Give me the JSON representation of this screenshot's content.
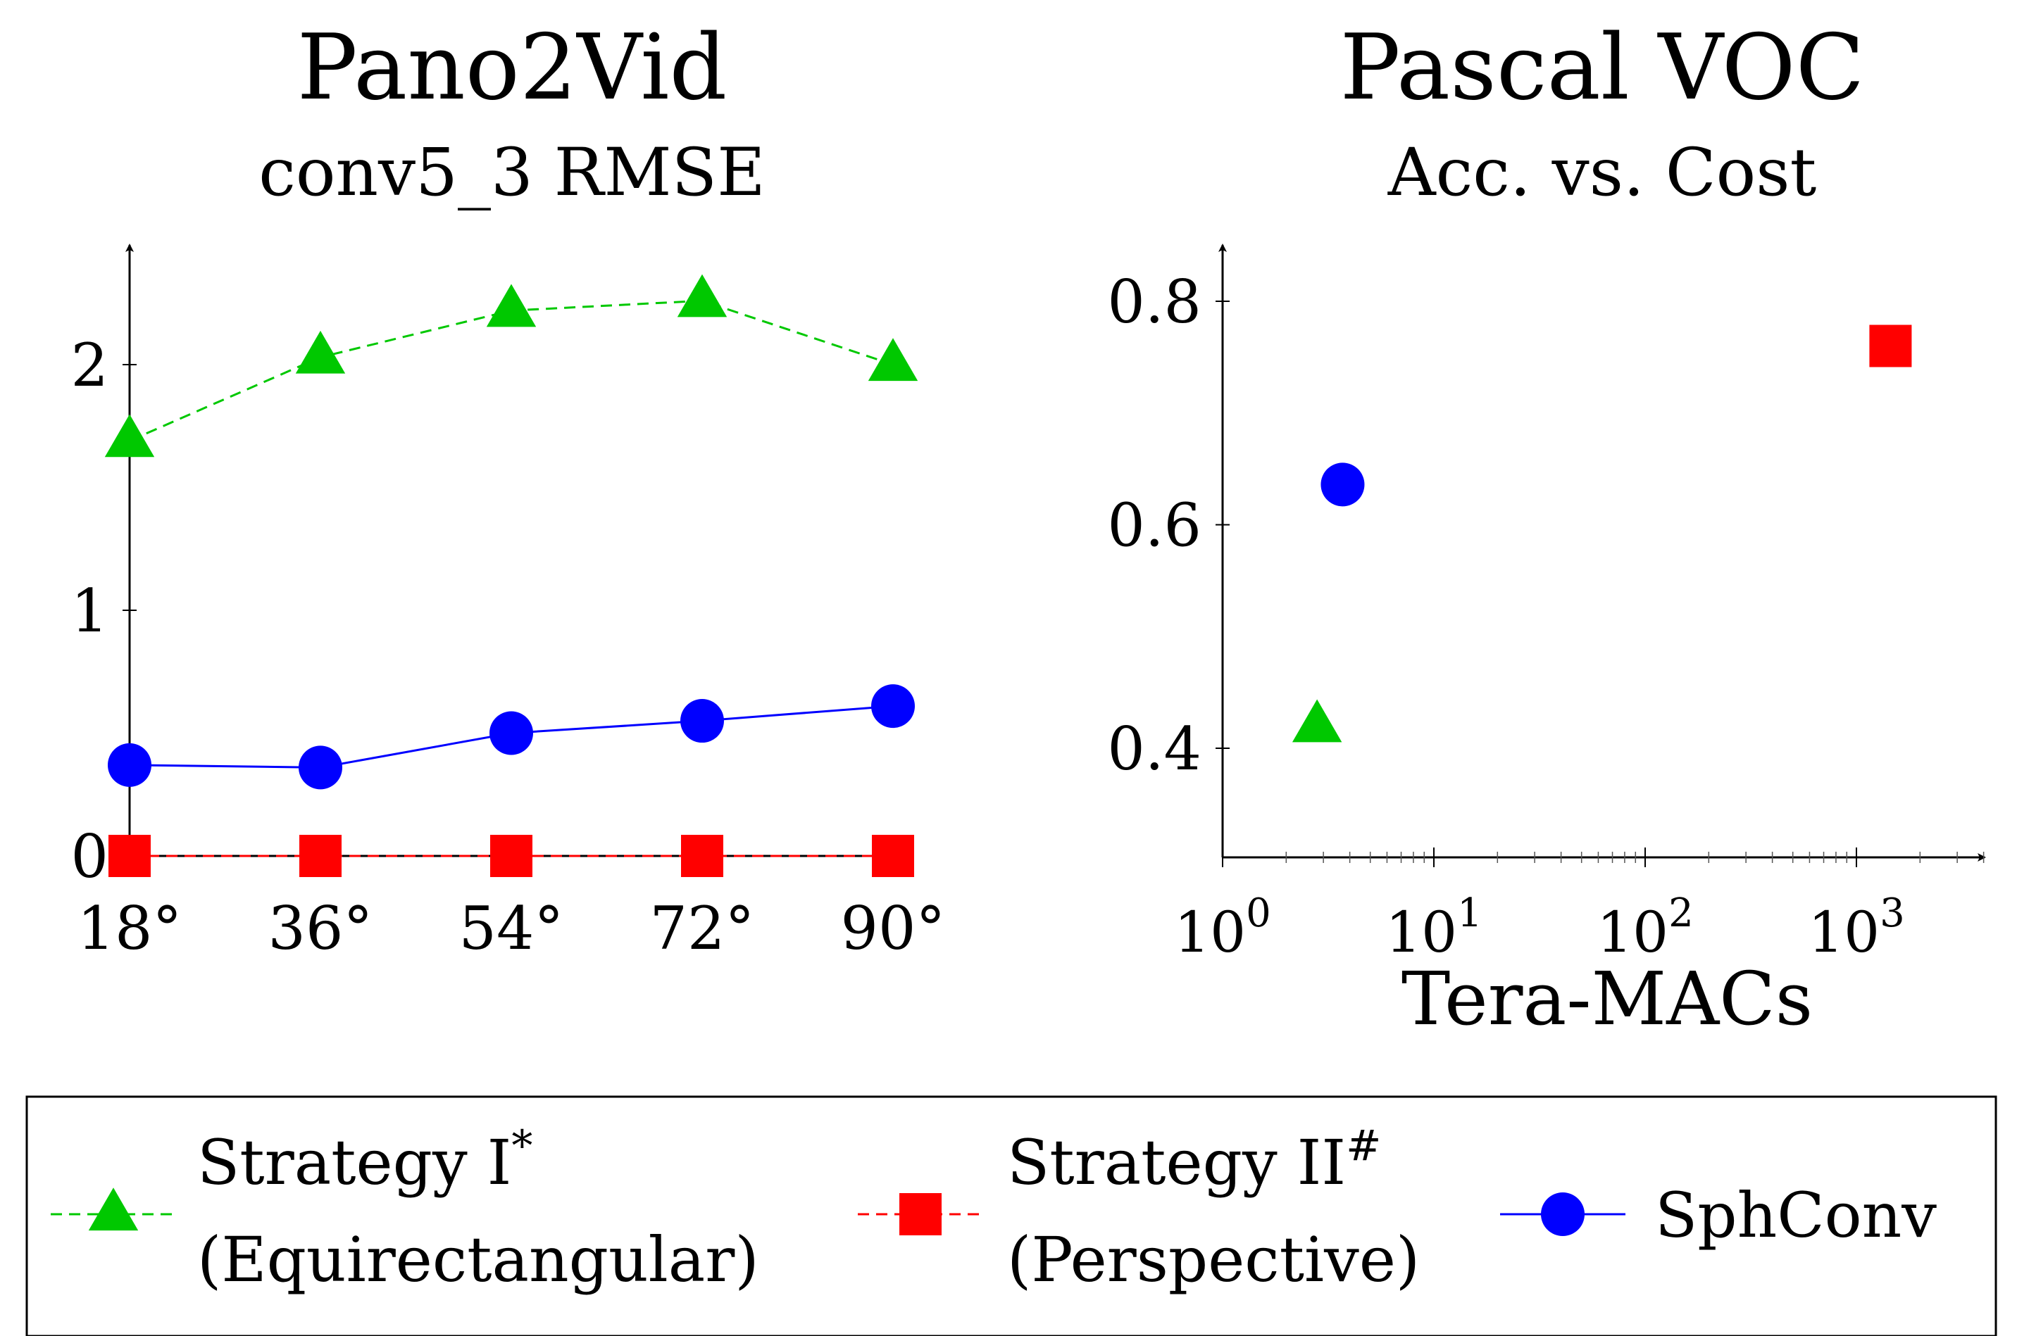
{
  "chart_data": [
    {
      "type": "line",
      "title": "Pano2Vid",
      "subtitle": "conv5_3 RMSE",
      "xlabel": "",
      "ylabel": "",
      "categories": [
        "18°",
        "36°",
        "54°",
        "72°",
        "90°"
      ],
      "yticks": [
        "0",
        "1",
        "2"
      ],
      "ylim": [
        0,
        2.4
      ],
      "grid": false,
      "series": [
        {
          "name": "Strategy I* (Equirectangular)",
          "values": [
            1.69,
            2.03,
            2.22,
            2.26,
            2.0
          ],
          "color": "#00c800",
          "line": "dashed",
          "marker": "triangle"
        },
        {
          "name": "Strategy II# (Perspective)",
          "values": [
            0,
            0,
            0,
            0,
            0
          ],
          "color": "#ff0000",
          "line": "dashed",
          "marker": "square"
        },
        {
          "name": "SphConv",
          "values": [
            0.37,
            0.36,
            0.5,
            0.55,
            0.61
          ],
          "color": "#0000ff",
          "line": "solid",
          "marker": "circle"
        }
      ]
    },
    {
      "type": "scatter",
      "title": "Pascal VOC",
      "subtitle": "Acc. vs. Cost",
      "xlabel": "Tera-MACs",
      "ylabel": "",
      "xscale": "log",
      "xticks": [
        {
          "base": "10",
          "exp": "0"
        },
        {
          "base": "10",
          "exp": "1"
        },
        {
          "base": "10",
          "exp": "2"
        },
        {
          "base": "10",
          "exp": "3"
        }
      ],
      "yticks": [
        "0.4",
        "0.6",
        "0.8"
      ],
      "xlim": [
        1,
        4500
      ],
      "ylim": [
        0.3,
        0.85
      ],
      "grid": false,
      "series": [
        {
          "name": "Strategy I* (Equirectangular)",
          "x": [
            2.8
          ],
          "y": [
            0.42
          ],
          "color": "#00c800",
          "marker": "triangle"
        },
        {
          "name": "Strategy II# (Perspective)",
          "x": [
            1450
          ],
          "y": [
            0.76
          ],
          "color": "#ff0000",
          "marker": "square"
        },
        {
          "name": "SphConv",
          "x": [
            3.7
          ],
          "y": [
            0.636
          ],
          "color": "#0000ff",
          "marker": "circle"
        }
      ]
    }
  ],
  "legend": {
    "placement": "bottom",
    "items": [
      {
        "line1": "Strategy I",
        "sup": "*",
        "line2": "(Equirectangular)",
        "color": "#00c800",
        "line": "dashed",
        "marker": "triangle"
      },
      {
        "line1": "Strategy II",
        "sup": "#",
        "line2": "(Perspective)",
        "color": "#ff0000",
        "line": "dashed",
        "marker": "square"
      },
      {
        "line1": "SphConv",
        "sup": "",
        "line2": "",
        "color": "#0000ff",
        "line": "solid",
        "marker": "circle"
      }
    ]
  }
}
